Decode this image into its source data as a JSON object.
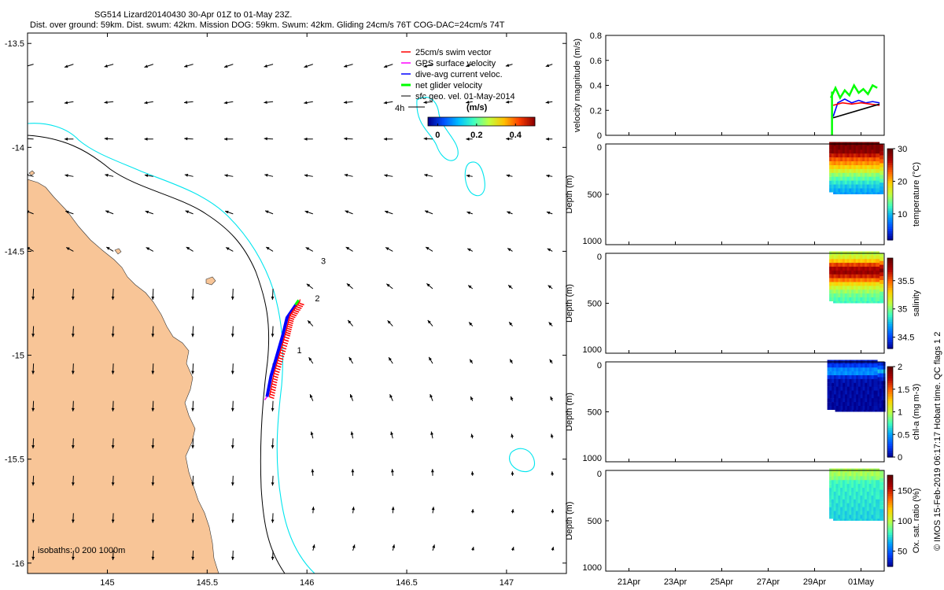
{
  "title_line1": "SG514 Lizard20140430 30-Apr 01Z to 01-May 23Z.",
  "title_line2": "Dist. over ground: 59km. Dist. swum: 42km. Mission DOG: 59km. Swum: 42km. Gliding 24cm/s 76T COG-DAC=24cm/s 74T",
  "credit": "© IMOS 15-Feb-2019 06:17:17 Hobart time. QC flags 1  2",
  "colors": {
    "land": "#f8c597",
    "isobath_200": "#000000",
    "isobath_1000": "#00e5ee",
    "swim": "#ff0000",
    "gps": "#ff00ff",
    "dac": "#0000ff",
    "net": "#00ff00",
    "geo": "#000000"
  },
  "chart_data": [
    {
      "type": "scatter",
      "name": "map",
      "xlim": [
        144.6,
        147.3
      ],
      "ylim": [
        -16.05,
        -13.45
      ],
      "xticks": [
        "145",
        "145.5",
        "146",
        "146.5",
        "147"
      ],
      "yticks": [
        "-13.5",
        "-14",
        "-14.5",
        "-15",
        "-15.5",
        "-16"
      ],
      "legend": {
        "position": "top-right",
        "entries": [
          "25cm/s swim vector",
          "GPS surface velocity",
          "dive-avg current veloc.",
          "net glider velocity",
          "sfc geo. vel. 01-May-2014"
        ]
      },
      "colorbar": {
        "label": "(m/s)",
        "ticks": [
          "0",
          "0.2",
          "0.4"
        ],
        "range": [
          -0.05,
          0.5
        ],
        "colors": [
          "#00008f",
          "#0050ff",
          "#00c0ff",
          "#40ffbf",
          "#c0ff40",
          "#ffc000",
          "#ff4000",
          "#8f0000"
        ]
      },
      "scale_label": "4h",
      "isobath_label": "isobaths: 0   200  1000m",
      "track_labels": [
        {
          "text": "1",
          "lon": 145.95,
          "lat": -14.99
        },
        {
          "text": "2",
          "lon": 146.04,
          "lat": -14.74
        },
        {
          "text": "3",
          "lon": 146.07,
          "lat": -14.56
        }
      ],
      "track": [
        [
          145.8,
          -15.2
        ],
        [
          145.82,
          -15.1
        ],
        [
          145.85,
          -15.0
        ],
        [
          145.88,
          -14.9
        ],
        [
          145.9,
          -14.82
        ],
        [
          145.95,
          -14.75
        ]
      ],
      "geo_field": {
        "lons": [
          144.63,
          144.83,
          145.03,
          145.23,
          145.43,
          145.63,
          145.83,
          146.03,
          146.23,
          146.43,
          146.63,
          146.83,
          147.03,
          147.23
        ],
        "lats": [
          -13.6,
          -13.78,
          -13.96,
          -14.14,
          -14.32,
          -14.5,
          -14.68,
          -14.86,
          -15.04,
          -15.22,
          -15.4,
          -15.58,
          -15.76,
          -15.94
        ]
      }
    },
    {
      "type": "line",
      "name": "velocity",
      "ylabel": "velocity magnitude (m/s)",
      "ylim": [
        0,
        0.8
      ],
      "yticks": [
        "0",
        "0.2",
        "0.4",
        "0.6",
        "0.8"
      ],
      "series": [
        {
          "key": "net",
          "color": "#00ff00",
          "x": [
            29.7,
            29.9,
            30.1,
            30.3,
            30.5,
            30.7,
            30.9,
            31.1,
            31.3,
            31.5,
            31.7
          ],
          "y": [
            0.3,
            0.38,
            0.3,
            0.36,
            0.32,
            0.4,
            0.34,
            0.37,
            0.33,
            0.4,
            0.38
          ]
        },
        {
          "key": "dac",
          "color": "#0000ff",
          "x": [
            29.8,
            30.0,
            30.3,
            30.6,
            30.9,
            31.2,
            31.5,
            31.8
          ],
          "y": [
            0.15,
            0.26,
            0.29,
            0.26,
            0.28,
            0.26,
            0.27,
            0.26
          ]
        },
        {
          "key": "swim",
          "color": "#ff0000",
          "x": [
            29.8,
            30.2,
            30.6,
            31.0,
            31.4,
            31.8
          ],
          "y": [
            0.24,
            0.26,
            0.25,
            0.26,
            0.25,
            0.24
          ]
        },
        {
          "key": "geo",
          "color": "#000000",
          "x": [
            29.8,
            31.8
          ],
          "y": [
            0.14,
            0.25
          ]
        }
      ]
    },
    {
      "type": "scatter",
      "name": "temperature",
      "ylabel": "Depth (m)",
      "ylim": [
        0,
        1000
      ],
      "yticks": [
        "0",
        "500",
        "1000"
      ],
      "colorbar_label": "temperature (°C)",
      "colorbar_ticks": [
        "10",
        "20",
        "30"
      ],
      "colorbar_range": [
        2,
        30
      ],
      "x_range": [
        29.8,
        31.8
      ],
      "depth_max": 480,
      "profile": [
        [
          0,
          29
        ],
        [
          80,
          28
        ],
        [
          140,
          24
        ],
        [
          220,
          20
        ],
        [
          300,
          15
        ],
        [
          400,
          11
        ],
        [
          480,
          9
        ]
      ]
    },
    {
      "type": "scatter",
      "name": "salinity",
      "ylabel": "Depth (m)",
      "ylim": [
        0,
        1000
      ],
      "yticks": [
        "0",
        "500",
        "1000"
      ],
      "colorbar_label": "salinity",
      "colorbar_ticks": [
        "34.5",
        "35",
        "35.5"
      ],
      "colorbar_range": [
        34.3,
        35.9
      ],
      "x_range": [
        29.8,
        31.8
      ],
      "depth_max": 480,
      "profile": [
        [
          0,
          35.1
        ],
        [
          60,
          35.2
        ],
        [
          120,
          35.6
        ],
        [
          180,
          35.8
        ],
        [
          240,
          35.6
        ],
        [
          320,
          35.2
        ],
        [
          400,
          35.0
        ],
        [
          480,
          34.9
        ]
      ]
    },
    {
      "type": "scatter",
      "name": "chl-a",
      "ylabel": "Depth (m)",
      "ylim": [
        0,
        1000
      ],
      "yticks": [
        "0",
        "500",
        "1000"
      ],
      "colorbar_label": "chl-a (mg m-3)",
      "colorbar_ticks": [
        "0",
        "0.5",
        "1",
        "1.5",
        "2"
      ],
      "colorbar_range": [
        0,
        2
      ],
      "x_range": [
        29.8,
        31.8
      ],
      "depth_max": 480,
      "profile": [
        [
          0,
          0.1
        ],
        [
          60,
          0.3
        ],
        [
          100,
          0.6
        ],
        [
          140,
          0.2
        ],
        [
          200,
          0.05
        ],
        [
          480,
          0.02
        ]
      ]
    },
    {
      "type": "scatter",
      "name": "oxygen",
      "ylabel": "Depth (m)",
      "ylim": [
        0,
        1000
      ],
      "yticks": [
        "0",
        "500",
        "1000"
      ],
      "colorbar_label": "Ox. sat. ratio (%)",
      "colorbar_ticks": [
        "50",
        "100",
        "150"
      ],
      "colorbar_range": [
        25,
        175
      ],
      "x_range": [
        29.8,
        31.8
      ],
      "depth_max": 480,
      "profile": [
        [
          0,
          97
        ],
        [
          60,
          95
        ],
        [
          120,
          80
        ],
        [
          480,
          72
        ]
      ]
    }
  ],
  "time_axis": {
    "xlim": [
      20,
      32
    ],
    "ticks": [
      {
        "label": "21Apr",
        "x": 21
      },
      {
        "label": "23Apr",
        "x": 23
      },
      {
        "label": "25Apr",
        "x": 25
      },
      {
        "label": "27Apr",
        "x": 27
      },
      {
        "label": "29Apr",
        "x": 29
      },
      {
        "label": "01May",
        "x": 31
      }
    ]
  }
}
